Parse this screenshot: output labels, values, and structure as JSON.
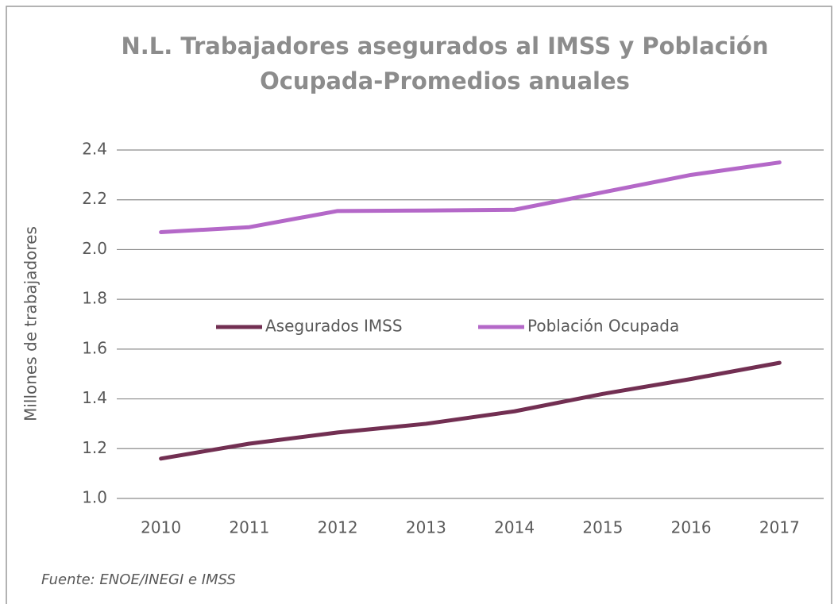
{
  "chart_data": {
    "type": "line",
    "title": "N.L. Trabajadores asegurados al IMSS y Población Ocupada-Promedios anuales",
    "y_label": "Millones de trabajadores",
    "source": "Fuente: ENOE/INEGI e IMSS",
    "categories": [
      "2010",
      "2011",
      "2012",
      "2013",
      "2014",
      "2015",
      "2016",
      "2017"
    ],
    "series": [
      {
        "name": "Asegurados IMSS",
        "color": "#722f52",
        "values": [
          1.16,
          1.22,
          1.265,
          1.3,
          1.35,
          1.42,
          1.48,
          1.545
        ]
      },
      {
        "name": "Población Ocupada",
        "color": "#b468c8",
        "values": [
          2.07,
          2.09,
          2.155,
          2.157,
          2.16,
          2.23,
          2.3,
          2.35
        ]
      }
    ],
    "ylim": [
      1.0,
      2.4
    ],
    "yticks": [
      {
        "value": 1.0,
        "label": "1.0"
      },
      1.2,
      1.4,
      1.6,
      1.8,
      {
        "value": 2.0,
        "label": "2.0"
      },
      2.2,
      2.4
    ],
    "grid": true,
    "legend": "center"
  }
}
